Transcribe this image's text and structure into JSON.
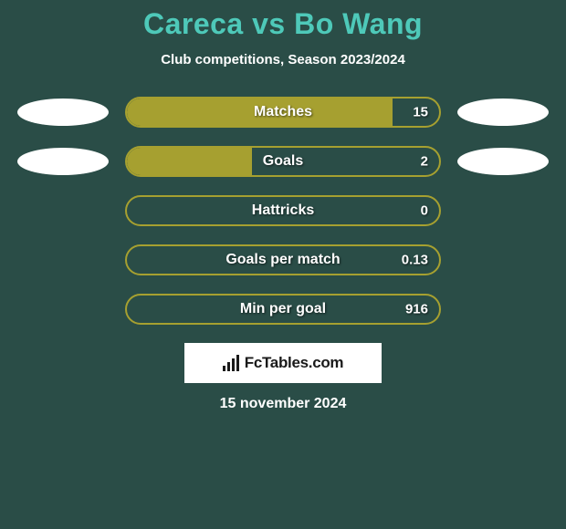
{
  "title": "Careca vs Bo Wang",
  "subtitle": "Club competitions, Season 2023/2024",
  "colors": {
    "background": "#2a4d47",
    "title_color": "#4ec9b9",
    "text_color": "#ffffff",
    "bar_border": "#a6a030",
    "bar_fill": "#a6a030",
    "disc_color": "#ffffff",
    "badge_bg": "#ffffff",
    "badge_text": "#1a1a1a"
  },
  "typography": {
    "title_fontsize": 32,
    "title_weight": 900,
    "subtitle_fontsize": 15,
    "subtitle_weight": 700,
    "bar_label_fontsize": 16,
    "bar_value_fontsize": 15,
    "footer_fontsize": 16
  },
  "bars": [
    {
      "label": "Matches",
      "value": "15",
      "fill_pct": 85,
      "left_disc": true,
      "right_disc": true
    },
    {
      "label": "Goals",
      "value": "2",
      "fill_pct": 40,
      "left_disc": true,
      "right_disc": true
    },
    {
      "label": "Hattricks",
      "value": "0",
      "fill_pct": 0,
      "left_disc": false,
      "right_disc": false
    },
    {
      "label": "Goals per match",
      "value": "0.13",
      "fill_pct": 0,
      "left_disc": false,
      "right_disc": false
    },
    {
      "label": "Min per goal",
      "value": "916",
      "fill_pct": 0,
      "left_disc": false,
      "right_disc": false
    }
  ],
  "bar_style": {
    "outer_width": 346,
    "outer_height": 34,
    "outer_radius": 17,
    "border_width": 2
  },
  "disc_style": {
    "width": 100,
    "height": 30
  },
  "footer": {
    "brand": "FcTables.com",
    "date": "15 november 2024"
  }
}
